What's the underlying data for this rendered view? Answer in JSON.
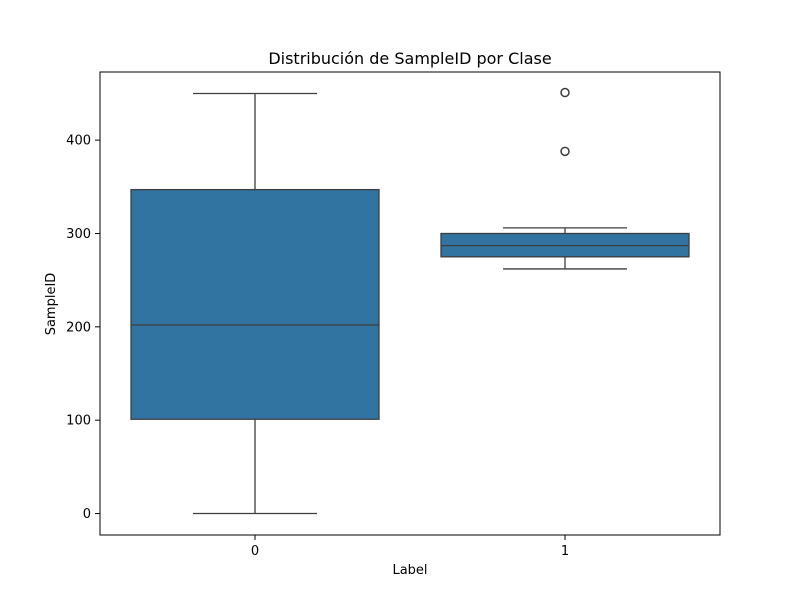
{
  "chart_data": {
    "type": "box",
    "title": "Distribución de SampleID por Clase",
    "xlabel": "Label",
    "ylabel": "SampleID",
    "categories": [
      "0",
      "1"
    ],
    "ylim": [
      -23,
      473
    ],
    "yticks": [
      0,
      100,
      200,
      300,
      400
    ],
    "grid": false,
    "box_color": "#3274a1",
    "line_color": "#3d3d3d",
    "boxes": [
      {
        "category": "0",
        "whisker_low": 0,
        "q1": 101,
        "median": 202,
        "q3": 347,
        "whisker_high": 450,
        "outliers": []
      },
      {
        "category": "1",
        "whisker_low": 262,
        "q1": 275,
        "median": 287,
        "q3": 300,
        "whisker_high": 306,
        "outliers": [
          388,
          451
        ]
      }
    ]
  }
}
